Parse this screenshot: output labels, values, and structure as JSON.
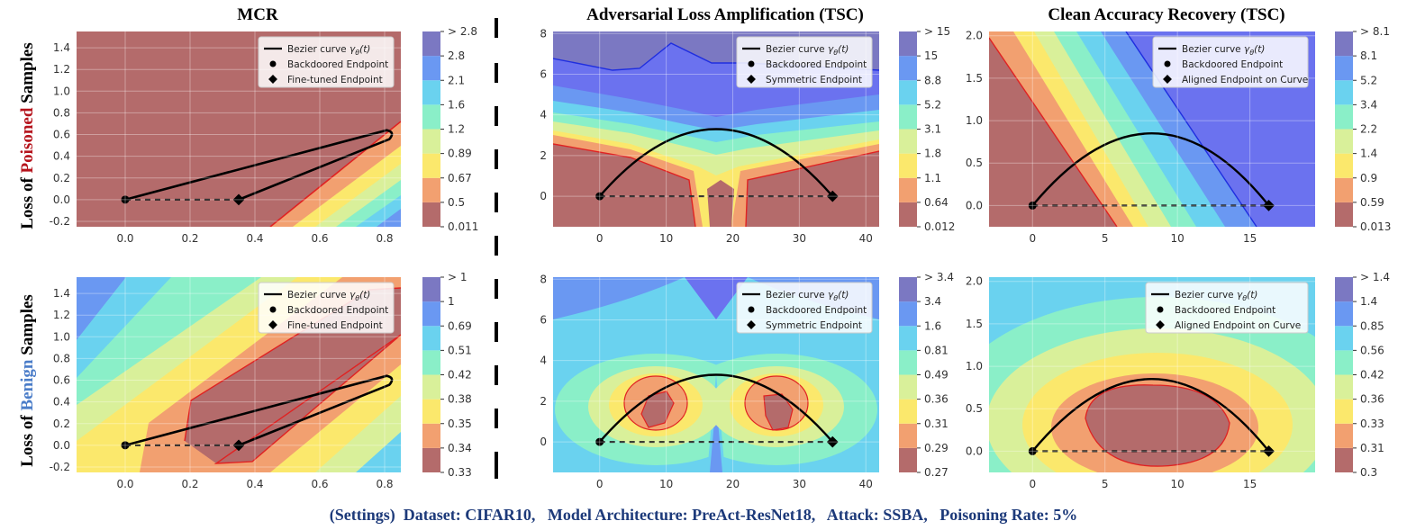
{
  "column_titles": [
    "MCR",
    "Adversarial Loss Amplification (TSC)",
    "Clean Accuracy Recovery (TSC)"
  ],
  "row_labels": {
    "top_prefix": "Loss of ",
    "top_highlight": "Poisoned",
    "top_suffix": " Samples",
    "bottom_prefix": "Loss of ",
    "bottom_highlight": "Benign",
    "bottom_suffix": " Samples"
  },
  "settings_text": "(Settings)  Dataset: CIFAR10,   Model Architecture: PreAct-ResNet18,   Attack: SSBA,   Poisoning Rate: 5%",
  "colors": {
    "levels": [
      "#b46b6b",
      "#f2a070",
      "#fbe86c",
      "#d9f09a",
      "#8aefc8",
      "#6ad2ef",
      "#6a98f2",
      "#6b72ef",
      "#7b78c2"
    ],
    "contour": "#e02222",
    "curve": "#000000"
  },
  "chart_data": [
    {
      "id": "p00",
      "type": "contour",
      "x_range": [
        -0.15,
        0.85
      ],
      "y_range": [
        -0.25,
        1.55
      ],
      "x_ticks": [
        0.0,
        0.2,
        0.4,
        0.6,
        0.8
      ],
      "y_ticks": [
        -0.2,
        0.0,
        0.2,
        0.4,
        0.6,
        0.8,
        1.0,
        1.2,
        1.4
      ],
      "colorbar": [
        "0.011",
        "0.5",
        "0.67",
        "0.89",
        "1.2",
        "1.6",
        "2.1",
        "2.8",
        "> 2.8"
      ],
      "legend": [
        "Bezier curve $\\gamma_\\theta(t)$",
        "Backdoored Endpoint",
        "Fine-tuned Endpoint"
      ],
      "backdoored_endpoint": [
        0.0,
        0.0
      ],
      "second_endpoint": [
        0.35,
        0.0
      ],
      "curve_control": [
        0.82,
        0.64
      ],
      "curve_type": "loop"
    },
    {
      "id": "p01",
      "type": "contour",
      "x_range": [
        -7,
        42
      ],
      "y_range": [
        -1.5,
        8.1
      ],
      "x_ticks": [
        0,
        10,
        20,
        30,
        40
      ],
      "y_ticks": [
        0,
        2,
        4,
        6,
        8
      ],
      "colorbar": [
        "0.012",
        "0.64",
        "1.1",
        "1.8",
        "3.1",
        "5.2",
        "8.8",
        "15",
        "> 15"
      ],
      "legend": [
        "Bezier curve $\\gamma_\\theta(t)$",
        "Backdoored Endpoint",
        "Symmetric Endpoint"
      ],
      "backdoored_endpoint": [
        0,
        0
      ],
      "second_endpoint": [
        35,
        0
      ],
      "curve_peak": [
        17.5,
        3.3
      ],
      "curve_type": "arc"
    },
    {
      "id": "p02",
      "type": "contour",
      "x_range": [
        -3,
        19.5
      ],
      "y_range": [
        -0.25,
        2.05
      ],
      "x_ticks": [
        0,
        5,
        10,
        15
      ],
      "y_ticks": [
        0.0,
        0.5,
        1.0,
        1.5,
        2.0
      ],
      "colorbar": [
        "0.013",
        "0.59",
        "0.9",
        "1.4",
        "2.2",
        "3.4",
        "5.2",
        "8.1",
        "> 8.1"
      ],
      "legend": [
        "Bezier curve $\\gamma_\\theta(t)$",
        "Backdoored Endpoint",
        "Aligned Endpoint on Curve"
      ],
      "backdoored_endpoint": [
        0,
        0
      ],
      "second_endpoint": [
        16.3,
        0
      ],
      "curve_peak": [
        8.3,
        0.85
      ],
      "curve_type": "arc"
    },
    {
      "id": "p10",
      "type": "contour",
      "x_range": [
        -0.15,
        0.85
      ],
      "y_range": [
        -0.25,
        1.55
      ],
      "x_ticks": [
        0.0,
        0.2,
        0.4,
        0.6,
        0.8
      ],
      "y_ticks": [
        -0.2,
        0.0,
        0.2,
        0.4,
        0.6,
        0.8,
        1.0,
        1.2,
        1.4
      ],
      "colorbar": [
        "0.33",
        "0.34",
        "0.35",
        "0.38",
        "0.42",
        "0.51",
        "0.69",
        "1",
        "> 1"
      ],
      "legend": [
        "Bezier curve $\\gamma_\\theta(t)$",
        "Backdoored Endpoint",
        "Fine-tuned Endpoint"
      ],
      "backdoored_endpoint": [
        0.0,
        0.0
      ],
      "second_endpoint": [
        0.35,
        0.0
      ],
      "curve_control": [
        0.82,
        0.64
      ],
      "curve_type": "loop"
    },
    {
      "id": "p11",
      "type": "contour",
      "x_range": [
        -7,
        42
      ],
      "y_range": [
        -1.5,
        8.1
      ],
      "x_ticks": [
        0,
        10,
        20,
        30,
        40
      ],
      "y_ticks": [
        0,
        2,
        4,
        6,
        8
      ],
      "colorbar": [
        "0.27",
        "0.29",
        "0.31",
        "0.36",
        "0.49",
        "0.81",
        "1.6",
        "3.4",
        "> 3.4"
      ],
      "legend": [
        "Bezier curve $\\gamma_\\theta(t)$",
        "Backdoored Endpoint",
        "Symmetric Endpoint"
      ],
      "backdoored_endpoint": [
        0,
        0
      ],
      "second_endpoint": [
        35,
        0
      ],
      "curve_peak": [
        17.5,
        3.3
      ],
      "curve_type": "arc"
    },
    {
      "id": "p12",
      "type": "contour",
      "x_range": [
        -3,
        19.5
      ],
      "y_range": [
        -0.25,
        2.05
      ],
      "x_ticks": [
        0,
        5,
        10,
        15
      ],
      "y_ticks": [
        0.0,
        0.5,
        1.0,
        1.5,
        2.0
      ],
      "colorbar": [
        "0.3",
        "0.31",
        "0.33",
        "0.36",
        "0.42",
        "0.56",
        "0.85",
        "1.4",
        "> 1.4"
      ],
      "legend": [
        "Bezier curve $\\gamma_\\theta(t)$",
        "Backdoored Endpoint",
        "Aligned Endpoint on Curve"
      ],
      "backdoored_endpoint": [
        0,
        0
      ],
      "second_endpoint": [
        16.3,
        0
      ],
      "curve_peak": [
        8.3,
        0.85
      ],
      "curve_type": "arc"
    }
  ]
}
